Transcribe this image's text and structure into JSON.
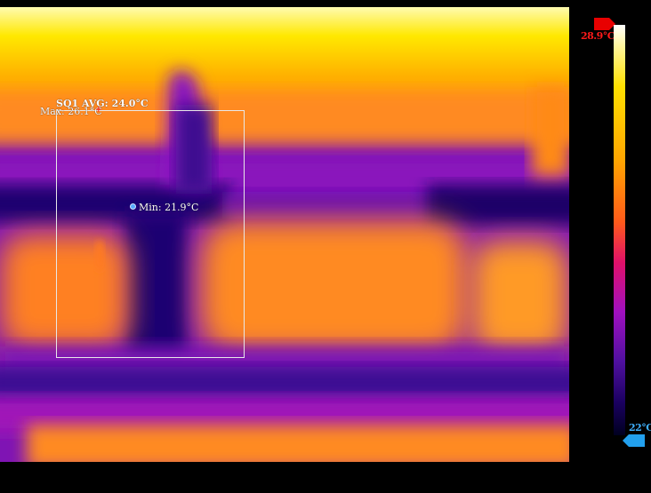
{
  "measurements": {
    "roi_avg": "SQ1 AVG: 24.0°C",
    "max": "Max: 26.1°C",
    "min": "Min: 21.9°C"
  },
  "scale": {
    "max": "28.9°C",
    "min": "22°C"
  },
  "colors": {
    "max_marker": "#ff2a2a",
    "min_marker": "#55aaff",
    "scale_max": "#e80000",
    "scale_min": "#22a0ee"
  }
}
